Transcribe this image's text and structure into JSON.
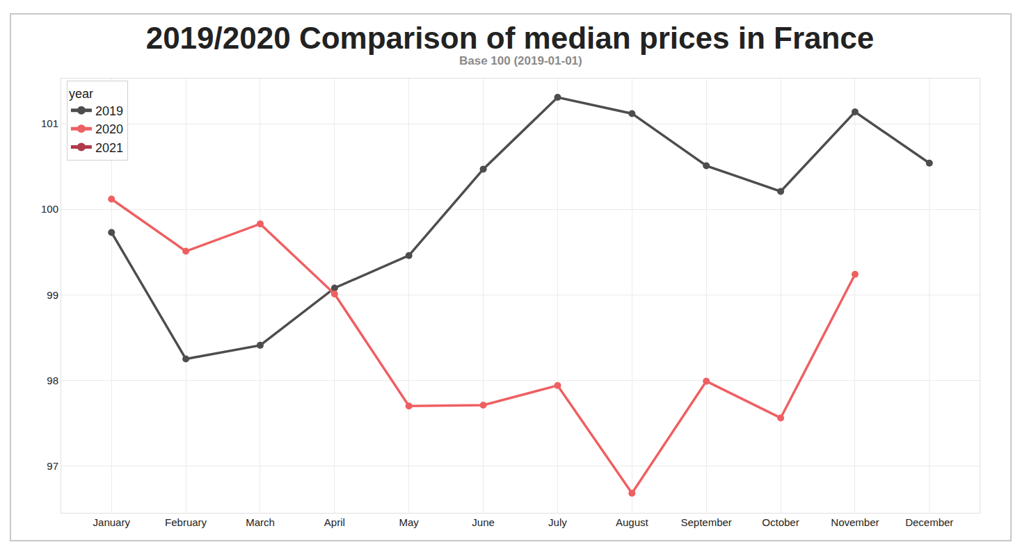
{
  "chart_data": {
    "type": "line",
    "title": "2019/2020 Comparison of median prices in France",
    "subtitle": "Base 100 (2019-01-01)",
    "legend_title": "year",
    "categories": [
      "January",
      "February",
      "March",
      "April",
      "May",
      "June",
      "July",
      "August",
      "September",
      "October",
      "November",
      "December"
    ],
    "series": [
      {
        "name": "2019",
        "color": "#4d4d4d",
        "values": [
          99.73,
          98.25,
          98.41,
          99.08,
          99.46,
          100.47,
          101.31,
          101.12,
          100.51,
          100.21,
          101.14,
          100.54
        ]
      },
      {
        "name": "2020",
        "color": "#ef5f62",
        "values": [
          100.12,
          99.51,
          99.83,
          99.01,
          97.7,
          97.71,
          97.94,
          96.68,
          97.99,
          97.56,
          99.24,
          null
        ]
      },
      {
        "name": "2021",
        "color": "#b03a48",
        "values": [
          null,
          null,
          null,
          null,
          null,
          null,
          null,
          null,
          null,
          null,
          null,
          null
        ]
      }
    ],
    "ylim": [
      96.45,
      101.53
    ],
    "yticks": [
      97,
      98,
      99,
      100,
      101
    ],
    "grid": true,
    "legend": "upper left",
    "marker": "circle",
    "line_style": "solid"
  }
}
